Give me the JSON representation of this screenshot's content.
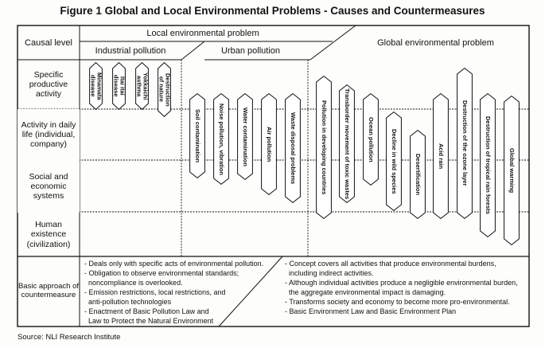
{
  "title": "Figure 1   Global and Local Environmental Problems - Causes and Countermeasures",
  "header": {
    "causal_level": "Causal level",
    "local": "Local environmental problem",
    "industrial": "Industrial pollution",
    "urban": "Urban pollution",
    "global": "Global environmental problem"
  },
  "rows": [
    "Specific productive activity",
    "Activity in daily life (individual, company)",
    "Social and economic systems",
    "Human existence (civilization)",
    "Basic approach of countermeasure"
  ],
  "industrial_problems": [
    "Minamata\ndisease",
    "Itai itai\ndisease",
    "Yokkaichi\nasthma",
    "Destruction\nof nature"
  ],
  "urban_problems": [
    "Soil contamination",
    "Noise pollution, vibration",
    "Water contamination",
    "Air pollution",
    "Waste disposal problems"
  ],
  "global_problems": [
    "Pollution in developing countries",
    "Transborder movement of toxic wastes",
    "Ocean pollution",
    "Decline in wild species",
    "Desertification",
    "Acid rain",
    "Destruction of the ozone layer",
    "Destruction of tropical rain forests",
    "Global warming"
  ],
  "local_approach": [
    "- Deals only with specific acts of environmental pollution.",
    "- Obligation to observe environmental standards;",
    "  noncompliance is overlooked.",
    "- Emission restrictions, local restrictions, and",
    "  anti-pollution technologies",
    "- Enactment of Basic Pollution Law and",
    "  Law to Protect the Natural Environment"
  ],
  "global_approach": [
    "- Concept covers all activities that produce environmental burdens,",
    "  including indirect activities.",
    "- Although individual activities produce a negligible environmental burden,",
    "  the aggregate environmental impact is damaging.",
    "- Transforms society and economy to become more pro-environmental.",
    "- Basic Environment Law and Basic Environment Plan"
  ],
  "source": "Source: NLI Research Institute"
}
